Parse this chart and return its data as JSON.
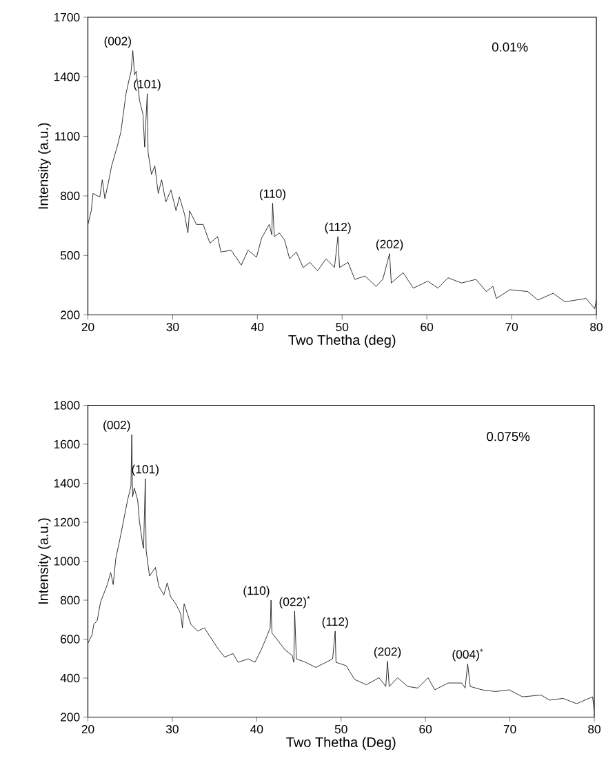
{
  "chart_data": [
    {
      "type": "line",
      "xlabel": "Two Thetha (deg)",
      "ylabel": "Intensity (a.u.)",
      "color": "#000000",
      "xlim": [
        20,
        80
      ],
      "ylim": [
        200,
        1700
      ],
      "xticks": [
        20,
        30,
        40,
        50,
        60,
        70,
        80
      ],
      "yticks": [
        200,
        500,
        800,
        1100,
        1400,
        1700
      ],
      "x": [
        20,
        20.4,
        20.6,
        21.4,
        21.7,
        22.0,
        22.4,
        22.8,
        23.5,
        23.9,
        24.2,
        24.5,
        24.9,
        25.1,
        25.3,
        25.5,
        25.7,
        26.1,
        26.5,
        26.7,
        27.0,
        27.1,
        27.5,
        27.9,
        28.3,
        28.7,
        29.2,
        29.8,
        30.4,
        30.8,
        31.4,
        31.8,
        32.0,
        32.8,
        33.6,
        34.4,
        35.3,
        35.7,
        36.9,
        38.1,
        38.9,
        39.9,
        40.5,
        41.4,
        41.7,
        41.8,
        42.0,
        42.6,
        43.2,
        43.8,
        44.6,
        45.4,
        46.2,
        47.1,
        48.1,
        49.1,
        49.5,
        49.7,
        50.7,
        51.5,
        52.7,
        54.0,
        54.8,
        55.6,
        55.8,
        57.2,
        58.4,
        60.1,
        61.3,
        62.5,
        64.1,
        65.8,
        67.0,
        67.8,
        68.2,
        69.8,
        71.9,
        73.1,
        74.9,
        76.3,
        78.8,
        79.8,
        80.0
      ],
      "values": [
        656,
        725,
        812,
        794,
        881,
        786,
        864,
        951,
        1055,
        1124,
        1220,
        1315,
        1393,
        1428,
        1532,
        1410,
        1428,
        1280,
        1211,
        1046,
        1315,
        1020,
        908,
        951,
        812,
        881,
        769,
        830,
        725,
        794,
        708,
        613,
        725,
        656,
        656,
        561,
        595,
        517,
        526,
        451,
        526,
        491,
        587,
        656,
        604,
        763,
        595,
        613,
        578,
        483,
        517,
        439,
        465,
        422,
        483,
        439,
        595,
        439,
        465,
        379,
        396,
        344,
        379,
        509,
        361,
        413,
        335,
        370,
        335,
        387,
        361,
        379,
        318,
        344,
        283,
        327,
        318,
        275,
        309,
        266,
        283,
        231,
        275
      ],
      "annotations": [
        "0.01%",
        {
          "text": "(002)",
          "x": 25.3,
          "y": 1532
        },
        {
          "text": "(101)",
          "x": 27.0,
          "y": 1315
        },
        {
          "text": "(110)",
          "x": 41.8,
          "y": 763
        },
        {
          "text": "(112)",
          "x": 49.5,
          "y": 595
        },
        {
          "text": "(202)",
          "x": 55.6,
          "y": 509
        }
      ]
    },
    {
      "type": "line",
      "xlabel": "Two Thetha (Deg)",
      "ylabel": "Intensity (a.u.)",
      "color": "#000000",
      "xlim": [
        20,
        80
      ],
      "ylim": [
        200,
        1800
      ],
      "xticks": [
        20,
        30,
        40,
        50,
        60,
        70,
        80
      ],
      "yticks": [
        200,
        400,
        600,
        800,
        1000,
        1200,
        1400,
        1600,
        1800
      ],
      "x": [
        20,
        20.5,
        20.7,
        21.1,
        21.5,
        21.9,
        22.3,
        22.7,
        23.0,
        23.3,
        23.9,
        24.3,
        24.7,
        25.1,
        25.2,
        25.3,
        25.5,
        25.9,
        26.1,
        26.5,
        26.6,
        26.8,
        26.9,
        27.3,
        28.0,
        28.4,
        29.0,
        29.4,
        29.8,
        30.4,
        31.0,
        31.2,
        31.4,
        32.2,
        33.0,
        33.8,
        34.6,
        35.4,
        36.2,
        37.2,
        37.8,
        39.0,
        39.8,
        40.6,
        41.2,
        41.6,
        41.7,
        41.8,
        42.6,
        43.4,
        44.2,
        44.4,
        44.5,
        44.7,
        45.8,
        47.0,
        48.2,
        49.0,
        49.3,
        49.4,
        50.6,
        51.6,
        53.0,
        54.5,
        55.3,
        55.5,
        55.7,
        56.7,
        57.9,
        59.1,
        60.3,
        61.1,
        62.7,
        64.3,
        64.7,
        65.0,
        65.3,
        66.7,
        68.3,
        69.9,
        71.5,
        73.7,
        74.7,
        76.3,
        77.9,
        79.8,
        80.0
      ],
      "values": [
        579,
        623,
        676,
        694,
        791,
        835,
        880,
        942,
        880,
        1012,
        1136,
        1225,
        1313,
        1384,
        1650,
        1331,
        1375,
        1313,
        1207,
        1083,
        1066,
        1423,
        1057,
        924,
        968,
        871,
        827,
        889,
        818,
        782,
        729,
        658,
        782,
        676,
        641,
        658,
        605,
        552,
        508,
        526,
        481,
        499,
        481,
        552,
        614,
        658,
        800,
        632,
        588,
        543,
        517,
        481,
        743,
        499,
        481,
        455,
        481,
        499,
        641,
        481,
        464,
        393,
        366,
        402,
        357,
        487,
        357,
        402,
        357,
        349,
        402,
        340,
        375,
        375,
        349,
        473,
        357,
        340,
        331,
        340,
        304,
        313,
        287,
        296,
        269,
        304,
        234
      ],
      "annotations": [
        "0.075%",
        {
          "text": "(002)",
          "x": 25.2,
          "y": 1650
        },
        {
          "text": "(101)",
          "x": 26.8,
          "y": 1423
        },
        {
          "text": "(110)",
          "x": 41.7,
          "y": 800
        },
        {
          "text": "(022)$^{*}$",
          "x": 44.5,
          "y": 743
        },
        {
          "text": "(112)",
          "x": 49.3,
          "y": 641
        },
        {
          "text": "(202)",
          "x": 55.5,
          "y": 487
        },
        {
          "text": "(004)$^{*}$",
          "x": 65.0,
          "y": 473
        }
      ]
    }
  ]
}
